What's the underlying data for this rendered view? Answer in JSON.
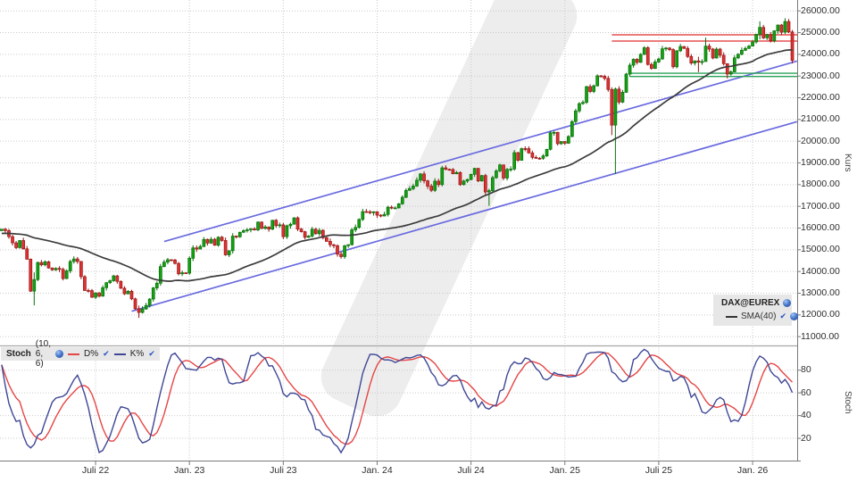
{
  "main_legend": {
    "symbol": "DAX@EUREX",
    "sma_label": "SMA(40)",
    "check": "✔"
  },
  "stoch_legend": {
    "name": "Stoch",
    "params": "(10, 6, 6)",
    "d_label": "D%",
    "k_label": "K%",
    "check": "✔"
  },
  "axes": {
    "price_title": "Kurs",
    "stoch_title": "Stoch",
    "price_ticks": [
      {
        "value": 26000,
        "label": "26000.00"
      },
      {
        "value": 25000,
        "label": "25000.00"
      },
      {
        "value": 24000,
        "label": "24000.00"
      },
      {
        "value": 23000,
        "label": "23000.00"
      },
      {
        "value": 22000,
        "label": "22000.00"
      },
      {
        "value": 21000,
        "label": "21000.00"
      },
      {
        "value": 20000,
        "label": "20000.00"
      },
      {
        "value": 19000,
        "label": "19000.00"
      },
      {
        "value": 18000,
        "label": "18000.00"
      },
      {
        "value": 17000,
        "label": "17000.00"
      },
      {
        "value": 16000,
        "label": "16000.00"
      },
      {
        "value": 15000,
        "label": "15000.00"
      },
      {
        "value": 14000,
        "label": "14000.00"
      },
      {
        "value": 13000,
        "label": "13000.00"
      },
      {
        "value": 12000,
        "label": "12000.00"
      },
      {
        "value": 11000,
        "label": "11000.00"
      }
    ],
    "stoch_ticks": [
      {
        "value": 80,
        "label": "80"
      },
      {
        "value": 60,
        "label": "60"
      },
      {
        "value": 40,
        "label": "40"
      },
      {
        "value": 20,
        "label": "20"
      }
    ],
    "date_ticks": [
      {
        "label": "Juli 22",
        "week": 26
      },
      {
        "label": "Jan. 23",
        "week": 52
      },
      {
        "label": "Juli 23",
        "week": 78
      },
      {
        "label": "Jan. 24",
        "week": 104
      },
      {
        "label": "Juli 24",
        "week": 130
      },
      {
        "label": "Jan. 25",
        "week": 156
      },
      {
        "label": "Juli 25",
        "week": 182
      },
      {
        "label": "Jan. 26",
        "week": 208
      }
    ]
  },
  "chart_data": {
    "type": "candlestick",
    "symbol": "DAX@EUREX",
    "timeframe": "weekly",
    "x_start": "Jan 2022",
    "price_axis_range": [
      10630,
      26490
    ],
    "stoch_axis_range": [
      0,
      100
    ],
    "grid": "dotted",
    "first_open": 15880,
    "weekly_closes": [
      15948,
      15883,
      15604,
      15319,
      15100,
      15425,
      15043,
      14567,
      13095,
      13628,
      14413,
      14306,
      14446,
      14163,
      14076,
      14142,
      14098,
      13674,
      14028,
      14462,
      14576,
      14460,
      13762,
      13126,
      13118,
      12813,
      13015,
      12865,
      13254,
      13484,
      13574,
      13796,
      13545,
      13230,
      12971,
      13088,
      12741,
      12284,
      12114,
      12273,
      12438,
      12731,
      13244,
      13460,
      14225,
      14432,
      14542,
      14529,
      14371,
      13894,
      13941,
      13924,
      14610,
      15087,
      15033,
      15150,
      15476,
      15308,
      15482,
      15210,
      15578,
      15428,
      14768,
      14957,
      15629,
      15598,
      15807,
      15881,
      15922,
      15961,
      15914,
      16275,
      15984,
      16051,
      15950,
      16358,
      16111,
      16148,
      15603,
      16105,
      16177,
      16470,
      15952,
      15832,
      15575,
      15632,
      15947,
      15740,
      15894,
      15557,
      15387,
      15230,
      15187,
      14798,
      14687,
      15189,
      15234,
      15919,
      16029,
      16397,
      16759,
      16751,
      16707,
      16752,
      16594,
      16555,
      16628,
      16961,
      16918,
      16926,
      17117,
      17419,
      17735,
      17815,
      17937,
      18205,
      18492,
      18175,
      17930,
      17737,
      18161,
      18001,
      18773,
      18704,
      18694,
      18498,
      18557,
      18002,
      18164,
      18235,
      18475,
      18748,
      18171,
      18417,
      17661,
      17722,
      18322,
      18633,
      18907,
      18302,
      18699,
      18720,
      19473,
      19121,
      19658,
      19657,
      19463,
      19255,
      19215,
      19211,
      19323,
      19626,
      20385,
      20406,
      19885,
      19984,
      19906,
      20215,
      20903,
      21395,
      21732,
      21787,
      22513,
      22288,
      22551,
      23009,
      22987,
      22892,
      22380,
      20740,
      22400,
      21800,
      22250,
      23090,
      23500,
      23770,
      23630,
      24000,
      24304,
      23533,
      23351,
      23649,
      23787,
      24255,
      24290,
      24218,
      23426,
      24163,
      24359,
      24273,
      23902,
      23597,
      23698,
      23639,
      23667,
      24378,
      24241,
      23830,
      24240,
      23958,
      23569,
      23091,
      23193,
      23837,
      24003,
      24186,
      24273,
      24379,
      24569,
      24920,
      25240,
      24760,
      24910,
      24620,
      25080,
      25350,
      25020,
      25510,
      25030,
      23720
    ],
    "wick_overrides": {
      "9": [
        13960,
        12439
      ],
      "38": [
        12430,
        11862
      ],
      "94": [
        14900,
        14589
      ],
      "135": [
        17810,
        17025
      ],
      "169": [
        22480,
        20280
      ],
      "170": [
        22470,
        18489
      ],
      "193": [
        23890,
        23180
      ],
      "195": [
        24770,
        24150
      ],
      "201": [
        23400,
        22890
      ],
      "210": [
        25520,
        24690
      ],
      "217": [
        25660,
        24930
      ],
      "219": [
        25120,
        23580
      ]
    },
    "indicators": {
      "sma": {
        "period": 40,
        "color": "#3c3c3c",
        "prefix_mean": 15750
      },
      "stochastic": {
        "period": 10,
        "k_smoothing": 6,
        "d_smoothing": 6,
        "k_color": "#3f4795",
        "d_color": "#e64545"
      }
    },
    "overlays": {
      "trend_channel": {
        "color": "#6a6ae0",
        "upper": {
          "week_from": 45,
          "price_from": 15380,
          "week_to": 220.3,
          "price_to": 23690
        },
        "lower": {
          "week_from": 36,
          "price_from": 12170,
          "week_to": 220.3,
          "price_to": 20900
        }
      },
      "resistance_lines": {
        "color": "#e96a6a",
        "prices": [
          24900,
          24610
        ],
        "week_from": 169
      },
      "support_lines": {
        "color": "#2ca05a",
        "prices": [
          23130,
          22980
        ],
        "week_from": 174
      }
    },
    "candle_colors": {
      "up_fill": "#12a212",
      "up_border": "#0b6e0b",
      "down_fill": "#dd3333",
      "down_border": "#991414"
    },
    "grid_color": "#c9c9c9",
    "axis_line_color": "#7a7a7a"
  },
  "watermark_color": "#ededed"
}
